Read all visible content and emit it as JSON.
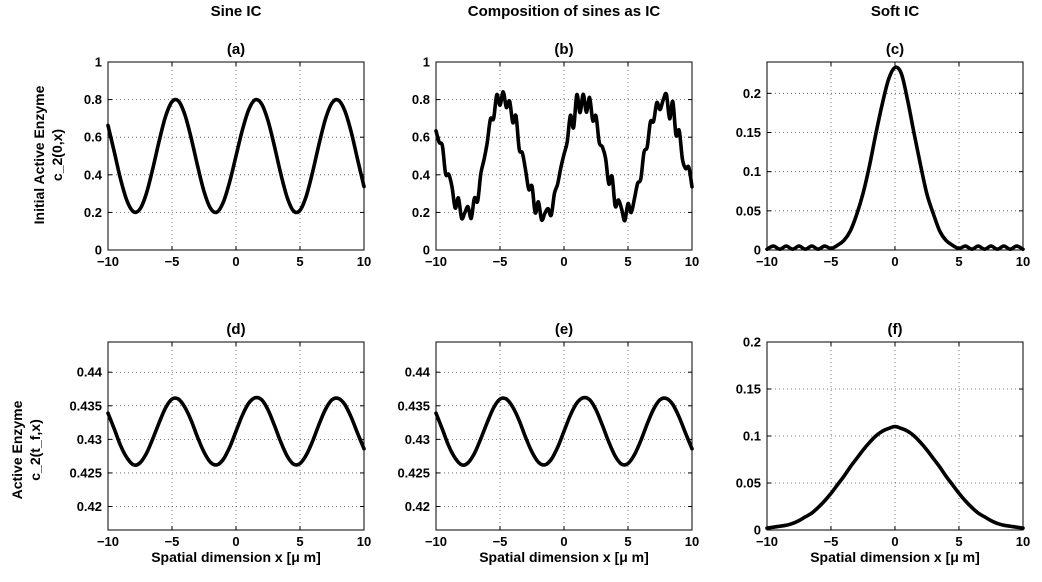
{
  "figure": {
    "column_titles": [
      "Sine IC",
      "Composition of sines as IC",
      "Soft IC"
    ],
    "row_ylabels": [
      [
        "Initial Active Enzyme",
        "c_2(0,x)"
      ],
      [
        "Active Enzyme",
        "c_2(t_f,x)"
      ]
    ],
    "xlabel": "Spatial dimension x [μ m]"
  },
  "chart_data": [
    {
      "panel": "(a)",
      "type": "line",
      "title": "Sine IC",
      "xlim": [
        -10,
        10
      ],
      "ylim": [
        0,
        1
      ],
      "xticks": [
        -10,
        -5,
        0,
        5,
        10
      ],
      "xtick_labels": [
        "−10",
        "−5",
        "0",
        "5",
        "10"
      ],
      "yticks": [
        0,
        0.2,
        0.4,
        0.6,
        0.8,
        1
      ],
      "ytick_labels": [
        "0",
        "0.2",
        "0.4",
        "0.6",
        "0.8",
        "1"
      ],
      "grid": true,
      "series": [
        {
          "x": [
            -10,
            -9.5,
            -9,
            -8.5,
            -8,
            -7.5,
            -7,
            -6.5,
            -6,
            -5.5,
            -5,
            -4.5,
            -4,
            -3.5,
            -3,
            -2.5,
            -2,
            -1.5,
            -1,
            -0.5,
            0,
            0.5,
            1,
            1.5,
            2,
            2.5,
            3,
            3.5,
            4,
            4.5,
            5,
            5.5,
            6,
            6.5,
            7,
            7.5,
            8,
            8.5,
            9,
            9.5,
            10
          ],
          "y": [
            0.663,
            0.519,
            0.372,
            0.259,
            0.203,
            0.218,
            0.301,
            0.433,
            0.581,
            0.711,
            0.789,
            0.793,
            0.721,
            0.595,
            0.447,
            0.312,
            0.223,
            0.201,
            0.253,
            0.361,
            0.5,
            0.639,
            0.747,
            0.799,
            0.777,
            0.688,
            0.553,
            0.405,
            0.279,
            0.207,
            0.211,
            0.289,
            0.419,
            0.567,
            0.699,
            0.782,
            0.797,
            0.741,
            0.628,
            0.481,
            0.337
          ]
        }
      ]
    },
    {
      "panel": "(b)",
      "type": "line",
      "title": "Composition of sines as IC",
      "xlim": [
        -10,
        10
      ],
      "ylim": [
        0,
        1
      ],
      "xticks": [
        -10,
        -5,
        0,
        5,
        10
      ],
      "xtick_labels": [
        "−10",
        "−5",
        "0",
        "5",
        "10"
      ],
      "yticks": [
        0,
        0.2,
        0.4,
        0.6,
        0.8,
        1
      ],
      "ytick_labels": [
        "0",
        "0.2",
        "0.4",
        "0.6",
        "0.8",
        "1"
      ],
      "grid": true,
      "series": [
        {
          "x": [
            -10,
            -9.75,
            -9.5,
            -9.25,
            -9,
            -8.75,
            -8.5,
            -8.25,
            -8,
            -7.75,
            -7.5,
            -7.25,
            -7,
            -6.75,
            -6.5,
            -6.25,
            -6,
            -5.75,
            -5.5,
            -5.25,
            -5,
            -4.75,
            -4.5,
            -4.25,
            -4,
            -3.75,
            -3.5,
            -3.25,
            -3,
            -2.75,
            -2.5,
            -2.25,
            -2,
            -1.75,
            -1.5,
            -1.25,
            -1,
            -0.75,
            -0.5,
            -0.25,
            0,
            0.25,
            0.5,
            0.75,
            1,
            1.25,
            1.5,
            1.75,
            2,
            2.25,
            2.5,
            2.75,
            3,
            3.25,
            3.5,
            3.75,
            4,
            4.25,
            4.5,
            4.75,
            5,
            5.25,
            5.5,
            5.75,
            6,
            6.25,
            6.5,
            6.75,
            7,
            7.25,
            7.5,
            7.75,
            8,
            8.25,
            8.5,
            8.75,
            9,
            9.25,
            9.5,
            9.75,
            10
          ],
          "y": [
            0.634,
            0.573,
            0.554,
            0.405,
            0.402,
            0.336,
            0.223,
            0.277,
            0.169,
            0.198,
            0.23,
            0.168,
            0.276,
            0.259,
            0.405,
            0.48,
            0.57,
            0.696,
            0.699,
            0.826,
            0.77,
            0.841,
            0.758,
            0.792,
            0.678,
            0.713,
            0.537,
            0.516,
            0.424,
            0.322,
            0.339,
            0.198,
            0.256,
            0.16,
            0.194,
            0.22,
            0.185,
            0.3,
            0.35,
            0.437,
            0.509,
            0.575,
            0.716,
            0.651,
            0.826,
            0.731,
            0.828,
            0.733,
            0.811,
            0.688,
            0.713,
            0.573,
            0.548,
            0.487,
            0.352,
            0.392,
            0.234,
            0.266,
            0.218,
            0.156,
            0.247,
            0.199,
            0.272,
            0.354,
            0.378,
            0.52,
            0.548,
            0.681,
            0.685,
            0.784,
            0.747,
            0.798,
            0.828,
            0.698,
            0.79,
            0.611,
            0.636,
            0.484,
            0.433,
            0.44,
            0.336
          ]
        }
      ]
    },
    {
      "panel": "(c)",
      "type": "line",
      "title": "Soft IC",
      "xlim": [
        -10,
        10
      ],
      "ylim": [
        0,
        0.24
      ],
      "xticks": [
        -10,
        -5,
        0,
        5,
        10
      ],
      "xtick_labels": [
        "−10",
        "−5",
        "0",
        "5",
        "10"
      ],
      "yticks": [
        0,
        0.05,
        0.1,
        0.15,
        0.2
      ],
      "ytick_labels": [
        "0",
        "0.05",
        "0.1",
        "0.15",
        "0.2"
      ],
      "grid": true,
      "series": [
        {
          "x": [
            -10,
            -9.5,
            -9,
            -8.5,
            -8,
            -7.5,
            -7,
            -6.5,
            -6,
            -5.5,
            -5,
            -4.5,
            -4,
            -3.5,
            -3,
            -2.5,
            -2,
            -1.5,
            -1,
            -0.5,
            0,
            0.5,
            1,
            1.5,
            2,
            2.5,
            3,
            3.5,
            4,
            4.5,
            5,
            5.5,
            6,
            6.5,
            7,
            7.5,
            8,
            8.5,
            9,
            9.5,
            10
          ],
          "y": [
            0.001,
            0.005,
            0.001,
            0.005,
            0.001,
            0.005,
            0.001,
            0.005,
            0.001,
            0.005,
            0.002,
            0.006,
            0.012,
            0.024,
            0.045,
            0.072,
            0.107,
            0.148,
            0.186,
            0.218,
            0.233,
            0.225,
            0.19,
            0.148,
            0.108,
            0.071,
            0.046,
            0.024,
            0.012,
            0.006,
            0.002,
            0.005,
            0.001,
            0.005,
            0.001,
            0.005,
            0.001,
            0.005,
            0.001,
            0.005,
            0.001
          ]
        }
      ]
    },
    {
      "panel": "(d)",
      "type": "line",
      "title": "",
      "xlabel": "Spatial dimension x [μ m]",
      "xlim": [
        -10,
        10
      ],
      "ylim": [
        0.4165,
        0.4445
      ],
      "xticks": [
        -10,
        -5,
        0,
        5,
        10
      ],
      "xtick_labels": [
        "−10",
        "−5",
        "0",
        "5",
        "10"
      ],
      "yticks": [
        0.42,
        0.425,
        0.43,
        0.435,
        0.44
      ],
      "ytick_labels": [
        "0.42",
        "0.425",
        "0.43",
        "0.435",
        "0.44"
      ],
      "grid": true,
      "series": [
        {
          "x": [
            -10,
            -9.5,
            -9,
            -8.5,
            -8,
            -7.5,
            -7,
            -6.5,
            -6,
            -5.5,
            -5,
            -4.5,
            -4,
            -3.5,
            -3,
            -2.5,
            -2,
            -1.5,
            -1,
            -0.5,
            0,
            0.5,
            1,
            1.5,
            2,
            2.5,
            3,
            3.5,
            4,
            4.5,
            5,
            5.5,
            6,
            6.5,
            7,
            7.5,
            8,
            8.5,
            9,
            9.5,
            10
          ],
          "y": [
            0.4339,
            0.4315,
            0.429,
            0.4272,
            0.4262,
            0.4265,
            0.4279,
            0.4301,
            0.4325,
            0.4347,
            0.436,
            0.436,
            0.4348,
            0.4328,
            0.4303,
            0.4281,
            0.4266,
            0.4262,
            0.427,
            0.4288,
            0.4312,
            0.4336,
            0.4354,
            0.4362,
            0.4359,
            0.4344,
            0.4321,
            0.4296,
            0.4275,
            0.4263,
            0.4264,
            0.4277,
            0.4298,
            0.4323,
            0.4345,
            0.4359,
            0.4361,
            0.4352,
            0.4333,
            0.4309,
            0.4286
          ]
        }
      ]
    },
    {
      "panel": "(e)",
      "type": "line",
      "title": "",
      "xlabel": "Spatial dimension x [μ m]",
      "xlim": [
        -10,
        10
      ],
      "ylim": [
        0.4165,
        0.4445
      ],
      "xticks": [
        -10,
        -5,
        0,
        5,
        10
      ],
      "xtick_labels": [
        "−10",
        "−5",
        "0",
        "5",
        "10"
      ],
      "yticks": [
        0.42,
        0.425,
        0.43,
        0.435,
        0.44
      ],
      "ytick_labels": [
        "0.42",
        "0.425",
        "0.43",
        "0.435",
        "0.44"
      ],
      "grid": true,
      "series": [
        {
          "x": [
            -10,
            -9.5,
            -9,
            -8.5,
            -8,
            -7.5,
            -7,
            -6.5,
            -6,
            -5.5,
            -5,
            -4.5,
            -4,
            -3.5,
            -3,
            -2.5,
            -2,
            -1.5,
            -1,
            -0.5,
            0,
            0.5,
            1,
            1.5,
            2,
            2.5,
            3,
            3.5,
            4,
            4.5,
            5,
            5.5,
            6,
            6.5,
            7,
            7.5,
            8,
            8.5,
            9,
            9.5,
            10
          ],
          "y": [
            0.4339,
            0.4315,
            0.429,
            0.4272,
            0.4262,
            0.4265,
            0.4279,
            0.4301,
            0.4325,
            0.4347,
            0.436,
            0.436,
            0.4348,
            0.4328,
            0.4303,
            0.4281,
            0.4266,
            0.4262,
            0.427,
            0.4288,
            0.4312,
            0.4336,
            0.4354,
            0.4362,
            0.4359,
            0.4344,
            0.4321,
            0.4296,
            0.4275,
            0.4263,
            0.4264,
            0.4277,
            0.4298,
            0.4323,
            0.4345,
            0.4359,
            0.4361,
            0.4352,
            0.4333,
            0.4309,
            0.4286
          ]
        }
      ]
    },
    {
      "panel": "(f)",
      "type": "line",
      "title": "",
      "xlabel": "Spatial dimension x [μ m]",
      "xlim": [
        -10,
        10
      ],
      "ylim": [
        0,
        0.2
      ],
      "xticks": [
        -10,
        -5,
        0,
        5,
        10
      ],
      "xtick_labels": [
        "−10",
        "−5",
        "0",
        "5",
        "10"
      ],
      "yticks": [
        0,
        0.05,
        0.1,
        0.15,
        0.2
      ],
      "ytick_labels": [
        "0",
        "0.05",
        "0.1",
        "0.15",
        "0.2"
      ],
      "grid": true,
      "series": [
        {
          "x": [
            -10,
            -9.5,
            -9,
            -8.5,
            -8,
            -7.5,
            -7,
            -6.5,
            -6,
            -5.5,
            -5,
            -4.5,
            -4,
            -3.5,
            -3,
            -2.5,
            -2,
            -1.5,
            -1,
            -0.5,
            0,
            0.5,
            1,
            1.5,
            2,
            2.5,
            3,
            3.5,
            4,
            4.5,
            5,
            5.5,
            6,
            6.5,
            7,
            7.5,
            8,
            8.5,
            9,
            9.5,
            10
          ],
          "y": [
            0.002,
            0.003,
            0.004,
            0.005,
            0.007,
            0.01,
            0.014,
            0.018,
            0.024,
            0.031,
            0.039,
            0.048,
            0.057,
            0.067,
            0.076,
            0.085,
            0.093,
            0.1,
            0.105,
            0.108,
            0.11,
            0.108,
            0.105,
            0.1,
            0.093,
            0.085,
            0.076,
            0.067,
            0.057,
            0.048,
            0.039,
            0.031,
            0.024,
            0.018,
            0.014,
            0.01,
            0.007,
            0.005,
            0.004,
            0.003,
            0.002
          ]
        }
      ]
    }
  ]
}
